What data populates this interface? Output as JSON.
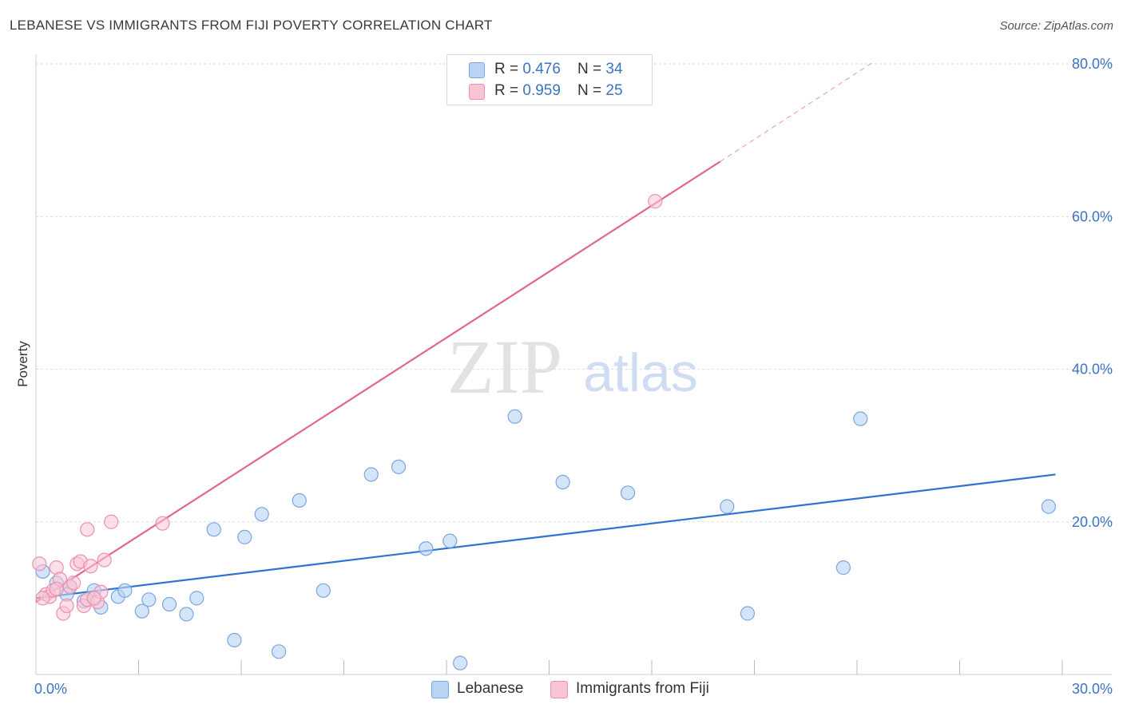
{
  "title": "LEBANESE VS IMMIGRANTS FROM FIJI POVERTY CORRELATION CHART",
  "source": "Source: ZipAtlas.com",
  "watermark": {
    "zip": "ZIP",
    "atlas": "atlas"
  },
  "legend": {
    "r_label": "R = ",
    "n_label": "N = ",
    "lebanese": {
      "r": "0.476",
      "n": "34"
    },
    "fiji": {
      "r": "0.959",
      "n": "25"
    }
  },
  "colors": {
    "lebanese_fill": "#b9d3f5",
    "lebanese_stroke": "#7aa6e0",
    "lebanese_line": "#2f72d0",
    "fiji_fill": "#f9c4d5",
    "fiji_stroke": "#ec8fb0",
    "fiji_line": "#e06690",
    "axis_text": "#3b73c5",
    "grid": "#dcdcdc"
  },
  "chart_data": {
    "type": "scatter",
    "title": "LEBANESE VS IMMIGRANTS FROM FIJI POVERTY CORRELATION CHART",
    "ylabel": "Poverty",
    "xlabel": "",
    "xlim": [
      0,
      30
    ],
    "ylim": [
      0,
      80
    ],
    "x_tick_labels": [
      "0.0%",
      "30.0%"
    ],
    "y_ticks": [
      20,
      40,
      60,
      80
    ],
    "y_tick_labels": [
      "20.0%",
      "40.0%",
      "60.0%",
      "80.0%"
    ],
    "series": [
      {
        "name": "Lebanese",
        "r": 0.476,
        "n": 34,
        "points": [
          [
            0.2,
            13.5
          ],
          [
            0.6,
            12.0
          ],
          [
            1.0,
            11.5
          ],
          [
            1.4,
            9.6
          ],
          [
            1.9,
            8.8
          ],
          [
            2.4,
            10.2
          ],
          [
            3.1,
            8.3
          ],
          [
            3.9,
            9.2
          ],
          [
            4.4,
            7.9
          ],
          [
            4.7,
            10.0
          ],
          [
            2.6,
            11.0
          ],
          [
            5.2,
            19.0
          ],
          [
            5.8,
            4.5
          ],
          [
            6.1,
            18.0
          ],
          [
            6.6,
            21.0
          ],
          [
            7.1,
            3.0
          ],
          [
            7.7,
            22.8
          ],
          [
            8.4,
            11.0
          ],
          [
            9.8,
            26.2
          ],
          [
            10.6,
            27.2
          ],
          [
            11.4,
            16.5
          ],
          [
            12.1,
            17.5
          ],
          [
            12.4,
            1.5
          ],
          [
            14.0,
            33.8
          ],
          [
            15.4,
            25.2
          ],
          [
            17.3,
            23.8
          ],
          [
            20.2,
            22.0
          ],
          [
            20.8,
            8.0
          ],
          [
            23.6,
            14.0
          ],
          [
            24.1,
            33.5
          ],
          [
            29.6,
            22.0
          ],
          [
            1.7,
            11.0
          ],
          [
            3.3,
            9.8
          ],
          [
            0.9,
            10.5
          ]
        ],
        "trend": {
          "x": [
            0,
            29.8
          ],
          "y": [
            10.0,
            26.2
          ]
        }
      },
      {
        "name": "Immigrants from Fiji",
        "r": 0.959,
        "n": 25,
        "points": [
          [
            0.1,
            14.5
          ],
          [
            0.3,
            10.5
          ],
          [
            0.4,
            10.2
          ],
          [
            0.5,
            11.0
          ],
          [
            0.6,
            14.0
          ],
          [
            0.7,
            12.5
          ],
          [
            0.8,
            8.0
          ],
          [
            0.9,
            9.0
          ],
          [
            1.0,
            11.5
          ],
          [
            1.1,
            12.0
          ],
          [
            1.2,
            14.5
          ],
          [
            1.3,
            14.8
          ],
          [
            1.4,
            9.0
          ],
          [
            1.5,
            9.8
          ],
          [
            1.5,
            19.0
          ],
          [
            1.6,
            14.2
          ],
          [
            1.8,
            9.5
          ],
          [
            1.9,
            10.8
          ],
          [
            2.0,
            15.0
          ],
          [
            2.2,
            20.0
          ],
          [
            3.7,
            19.8
          ],
          [
            18.1,
            62.0
          ],
          [
            0.2,
            10.0
          ],
          [
            0.6,
            11.2
          ],
          [
            1.7,
            10.0
          ]
        ],
        "trend": {
          "x": [
            0,
            20
          ],
          "y": [
            9.5,
            67.2
          ]
        },
        "trend_dashed": {
          "x": [
            20,
            24.5
          ],
          "y": [
            67.2,
            80.3
          ]
        }
      }
    ]
  },
  "bottom_legend": {
    "lebanese": "Lebanese",
    "fiji": "Immigrants from Fiji"
  }
}
